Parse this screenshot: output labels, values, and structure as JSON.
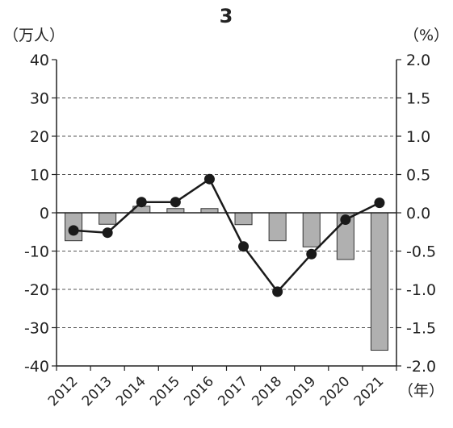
{
  "chart_data": {
    "type": "bar",
    "title": "3",
    "xlabel": "（年）",
    "ylabel_left": "（万人）",
    "ylabel_right": "（%）",
    "categories": [
      "2012",
      "2013",
      "2014",
      "2015",
      "2016",
      "2017",
      "2018",
      "2019",
      "2020",
      "2021"
    ],
    "series": [
      {
        "type": "bar",
        "axis": "left",
        "color": "#b0b0b0",
        "values": [
          -7.3,
          -3.0,
          1.7,
          1.1,
          1.1,
          -3.1,
          -7.3,
          -8.9,
          -12.2,
          -35.9
        ]
      },
      {
        "type": "line",
        "axis": "right",
        "color": "#1a1a1a",
        "values": [
          -0.23,
          -0.26,
          0.14,
          0.14,
          0.44,
          -0.44,
          -1.03,
          -0.54,
          -0.09,
          0.13
        ]
      }
    ],
    "ylim_left": [
      -40,
      40
    ],
    "ylim_right": [
      -2.0,
      2.0
    ],
    "yticks_left": [
      "40",
      "30",
      "20",
      "10",
      "0",
      "-10",
      "-20",
      "-30",
      "-40"
    ],
    "yticks_right": [
      "2.0",
      "1.5",
      "1.0",
      "0.5",
      "0.0",
      "-0.5",
      "-1.0",
      "-1.5",
      "-2.0"
    ],
    "grid": "horizontal-dashed",
    "legend": "none"
  }
}
